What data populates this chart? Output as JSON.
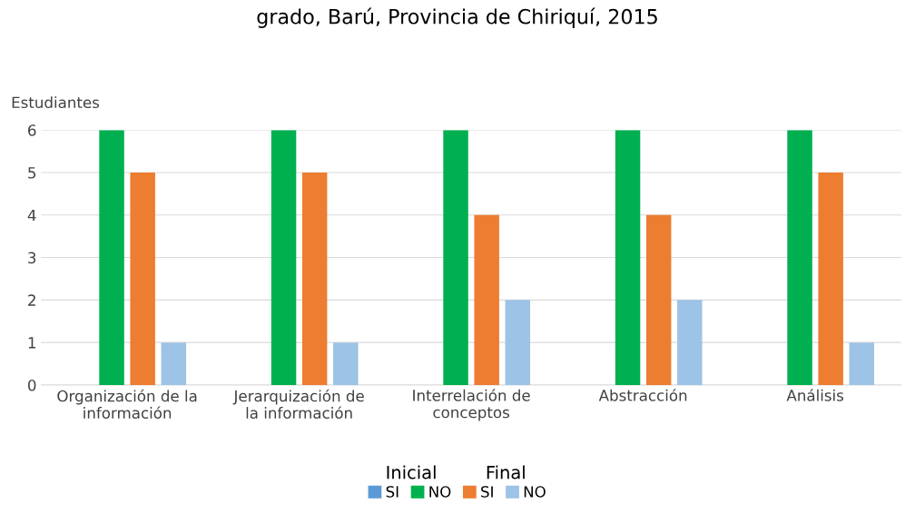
{
  "chart_data": {
    "type": "bar",
    "title": "grado, Barú, Provincia de Chiriquí, 2015",
    "ylabel": "Estudiantes",
    "categories": [
      "Organización de la\ninformación",
      "Jerarquización de\nla información",
      "Interrelación de\nconceptos",
      "Abstracción",
      "Análisis"
    ],
    "series": [
      {
        "name": "SI",
        "color": "#5b9bd5",
        "values": [
          0,
          0,
          0,
          0,
          0
        ]
      },
      {
        "name": "NO",
        "color": "#00b050",
        "values": [
          6,
          6,
          6,
          6,
          6
        ]
      },
      {
        "name": "SI",
        "color": "#ed7d31",
        "values": [
          5,
          5,
          4,
          4,
          5
        ]
      },
      {
        "name": "NO",
        "color": "#9dc3e6",
        "values": [
          1,
          1,
          2,
          2,
          1
        ]
      }
    ],
    "annotations": [
      "Inicial",
      "Final"
    ],
    "ylim": [
      0,
      6
    ],
    "yticks": [
      0,
      1,
      2,
      3,
      4,
      5,
      6
    ],
    "grid": "y",
    "legend": "bottom"
  }
}
